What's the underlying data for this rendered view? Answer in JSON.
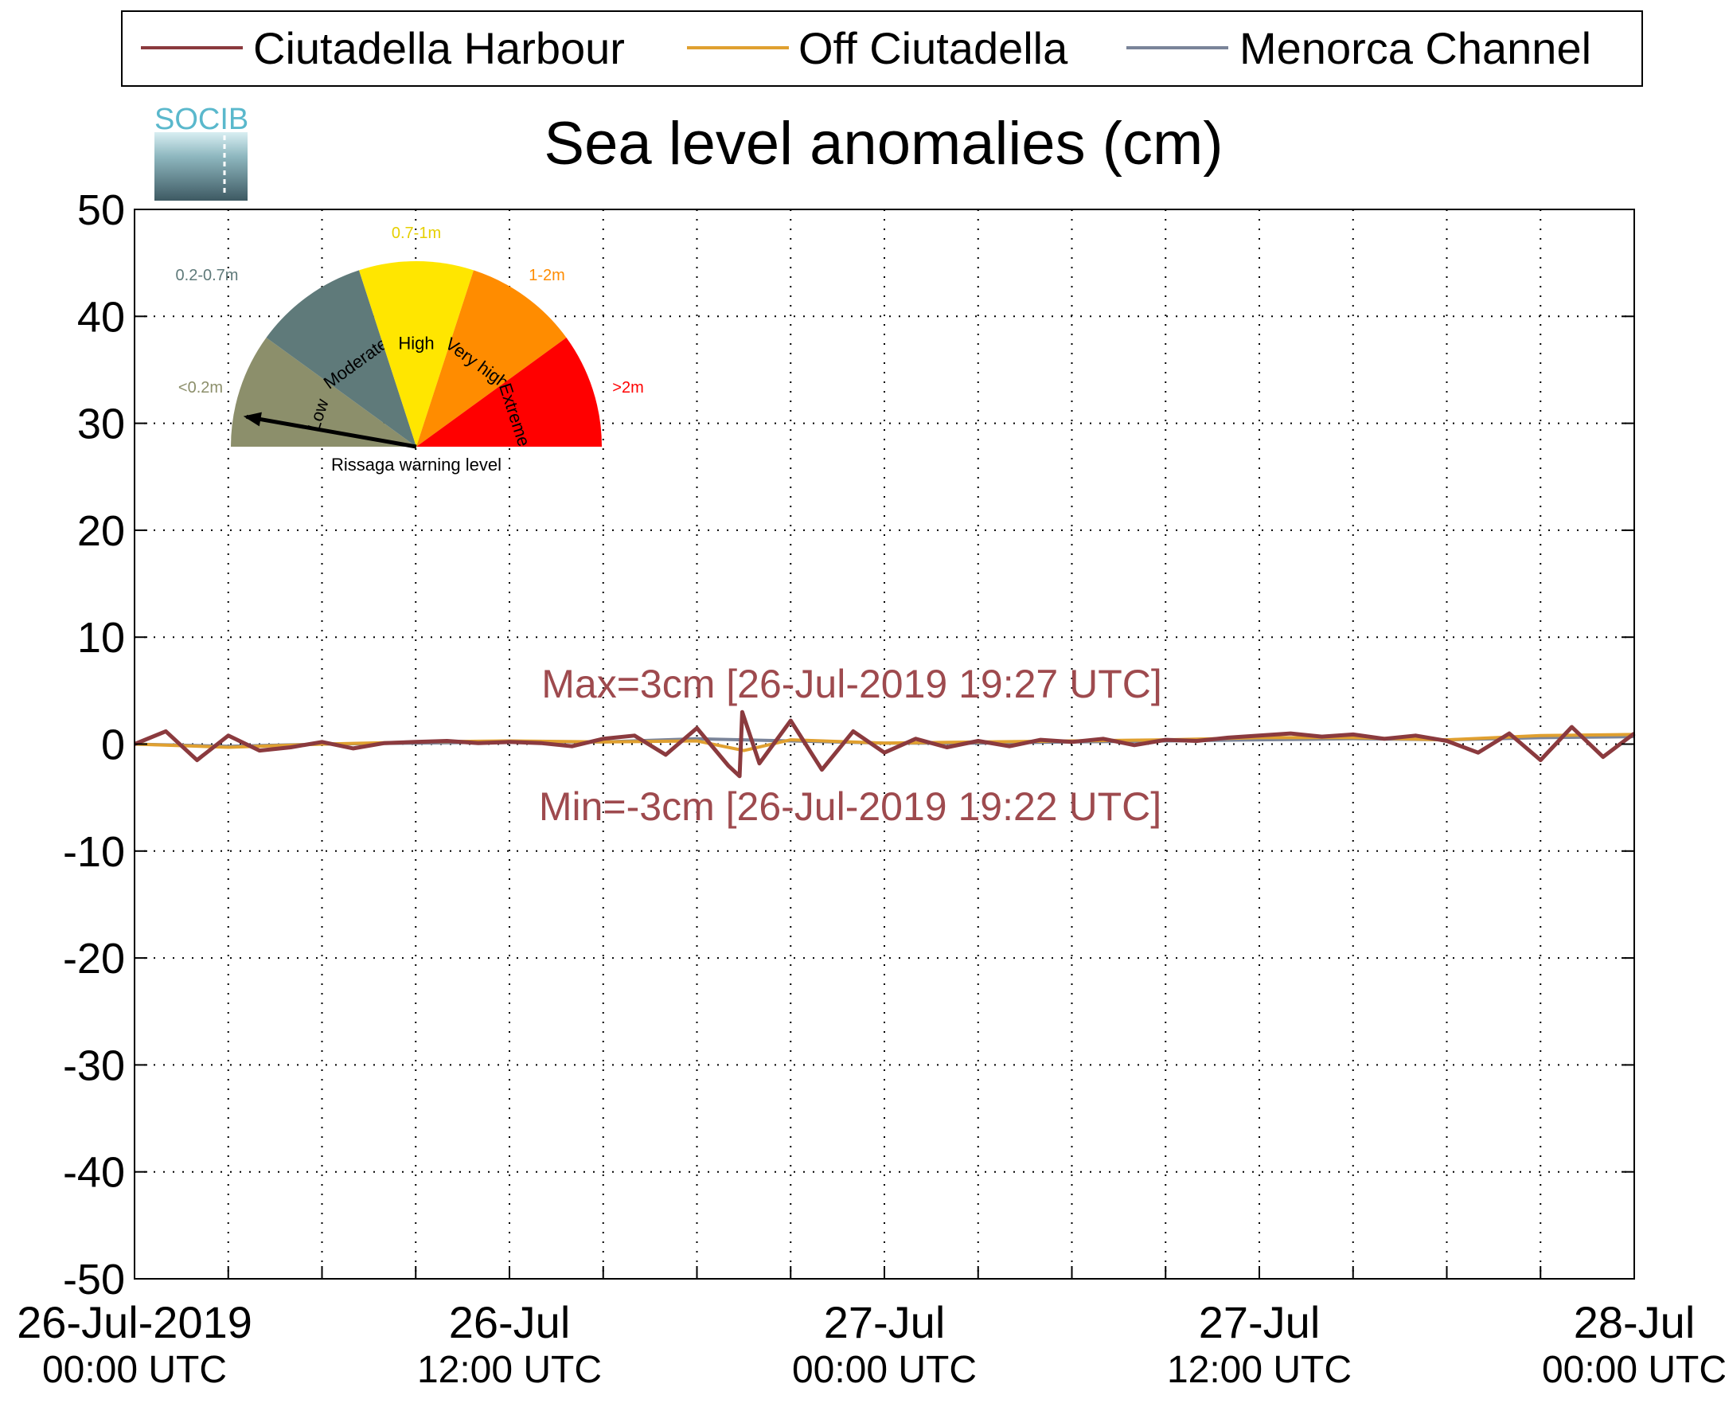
{
  "logo": {
    "text": "SOCIB"
  },
  "legend": {
    "items": [
      {
        "label": "Ciutadella Harbour",
        "color": "#8b3a3e"
      },
      {
        "label": "Off Ciutadella",
        "color": "#e0a030"
      },
      {
        "label": "Menorca Channel",
        "color": "#7a8499"
      }
    ]
  },
  "gauge": {
    "caption": "Rissaga warning level",
    "needle_level": "Low",
    "sectors": [
      {
        "name": "Low",
        "range": "<0.2m",
        "color": "#8c8f6b",
        "range_color": "#8c8f6b"
      },
      {
        "name": "Moderate",
        "range": "0.2-0.7m",
        "color": "#5f7a7a",
        "range_color": "#5f7a7a"
      },
      {
        "name": "High",
        "range": "0.7-1m",
        "color": "#ffe600",
        "range_color": "#e6cf00"
      },
      {
        "name": "Very high",
        "range": "1-2m",
        "color": "#ff8c00",
        "range_color": "#ff8c00"
      },
      {
        "name": "Extreme",
        "range": ">2m",
        "color": "#ff0000",
        "range_color": "#ff0000"
      }
    ]
  },
  "chart_data": {
    "type": "line",
    "title": "Sea level anomalies (cm)",
    "xlabel": "",
    "ylabel": "",
    "ylim": [
      -50,
      50
    ],
    "yticks": [
      -50,
      -40,
      -30,
      -20,
      -10,
      0,
      10,
      20,
      30,
      40,
      50
    ],
    "xlim": [
      "2019-07-26T00:00",
      "2019-07-28T00:00"
    ],
    "xtick_labels": [
      {
        "t": "2019-07-26T00:00",
        "line1": "26-Jul-2019",
        "line2": "00:00 UTC"
      },
      {
        "t": "2019-07-26T12:00",
        "line1": "26-Jul",
        "line2": "12:00 UTC"
      },
      {
        "t": "2019-07-27T00:00",
        "line1": "27-Jul",
        "line2": "00:00 UTC"
      },
      {
        "t": "2019-07-27T12:00",
        "line1": "27-Jul",
        "line2": "12:00 UTC"
      },
      {
        "t": "2019-07-28T00:00",
        "line1": "28-Jul",
        "line2": "00:00 UTC"
      }
    ],
    "grid": true,
    "legend_position": "top",
    "annotations": {
      "max": "Max=3cm [26-Jul-2019 19:27 UTC]",
      "min": "Min=-3cm [26-Jul-2019 19:22 UTC]"
    },
    "series": [
      {
        "name": "Ciutadella Harbour",
        "color": "#8b3a3e",
        "x": [
          "2019-07-26T00:00",
          "2019-07-26T01:00",
          "2019-07-26T02:00",
          "2019-07-26T03:00",
          "2019-07-26T04:00",
          "2019-07-26T05:00",
          "2019-07-26T06:00",
          "2019-07-26T07:00",
          "2019-07-26T08:00",
          "2019-07-26T09:00",
          "2019-07-26T10:00",
          "2019-07-26T11:00",
          "2019-07-26T12:00",
          "2019-07-26T13:00",
          "2019-07-26T14:00",
          "2019-07-26T15:00",
          "2019-07-26T16:00",
          "2019-07-26T17:00",
          "2019-07-26T18:00",
          "2019-07-26T19:00",
          "2019-07-26T19:22",
          "2019-07-26T19:27",
          "2019-07-26T20:00",
          "2019-07-26T21:00",
          "2019-07-26T22:00",
          "2019-07-26T23:00",
          "2019-07-27T00:00",
          "2019-07-27T01:00",
          "2019-07-27T02:00",
          "2019-07-27T03:00",
          "2019-07-27T04:00",
          "2019-07-27T05:00",
          "2019-07-27T06:00",
          "2019-07-27T07:00",
          "2019-07-27T08:00",
          "2019-07-27T09:00",
          "2019-07-27T10:00",
          "2019-07-27T11:00",
          "2019-07-27T12:00",
          "2019-07-27T13:00",
          "2019-07-27T14:00",
          "2019-07-27T15:00",
          "2019-07-27T16:00",
          "2019-07-27T17:00",
          "2019-07-27T18:00",
          "2019-07-27T19:00",
          "2019-07-27T20:00",
          "2019-07-27T21:00",
          "2019-07-27T22:00",
          "2019-07-27T23:00",
          "2019-07-28T00:00"
        ],
        "y": [
          0,
          1.2,
          -1.5,
          0.8,
          -0.6,
          -0.3,
          0.2,
          -0.4,
          0.1,
          0.2,
          0.3,
          0.1,
          0.2,
          0.1,
          -0.2,
          0.5,
          0.8,
          -1.0,
          1.5,
          -2.0,
          -3,
          3,
          -1.8,
          2.2,
          -2.4,
          1.2,
          -0.8,
          0.5,
          -0.3,
          0.3,
          -0.2,
          0.4,
          0.2,
          0.5,
          -0.1,
          0.4,
          0.3,
          0.6,
          0.8,
          1.0,
          0.7,
          0.9,
          0.5,
          0.8,
          0.3,
          -0.8,
          1.0,
          -1.5,
          1.6,
          -1.2,
          1.0
        ]
      },
      {
        "name": "Off Ciutadella",
        "color": "#e0a030",
        "x": [
          "2019-07-26T00:00",
          "2019-07-26T03:00",
          "2019-07-26T06:00",
          "2019-07-26T09:00",
          "2019-07-26T12:00",
          "2019-07-26T15:00",
          "2019-07-26T18:00",
          "2019-07-26T19:30",
          "2019-07-26T21:00",
          "2019-07-27T00:00",
          "2019-07-27T03:00",
          "2019-07-27T06:00",
          "2019-07-27T09:00",
          "2019-07-27T12:00",
          "2019-07-27T15:00",
          "2019-07-27T18:00",
          "2019-07-27T21:00",
          "2019-07-28T00:00"
        ],
        "y": [
          0,
          -0.3,
          0,
          0.2,
          0.3,
          0.2,
          0.3,
          -0.6,
          0.4,
          0.1,
          0.2,
          0.3,
          0.4,
          0.6,
          0.6,
          0.4,
          0.8,
          0.9
        ]
      },
      {
        "name": "Menorca Channel",
        "color": "#7a8499",
        "x": [
          "2019-07-26T00:00",
          "2019-07-26T03:00",
          "2019-07-26T06:00",
          "2019-07-26T09:00",
          "2019-07-26T12:00",
          "2019-07-26T15:00",
          "2019-07-26T18:00",
          "2019-07-26T21:00",
          "2019-07-27T00:00",
          "2019-07-27T03:00",
          "2019-07-27T06:00",
          "2019-07-27T09:00",
          "2019-07-27T12:00",
          "2019-07-27T15:00",
          "2019-07-27T18:00",
          "2019-07-27T21:00",
          "2019-07-28T00:00"
        ],
        "y": [
          0,
          -0.2,
          0,
          0.1,
          0.2,
          0.2,
          0.5,
          0.3,
          0.1,
          0.1,
          0.2,
          0.3,
          0.4,
          0.5,
          0.4,
          0.6,
          0.7
        ]
      }
    ]
  }
}
